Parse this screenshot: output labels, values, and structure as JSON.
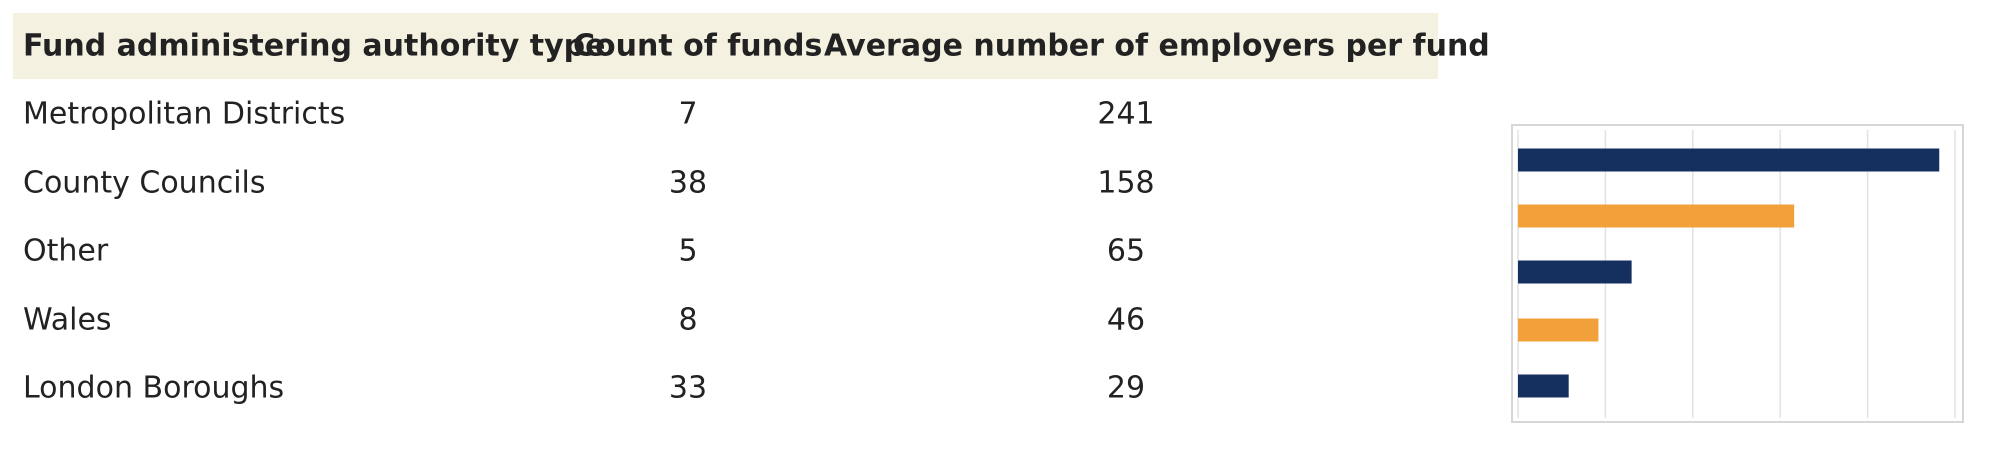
{
  "table": {
    "header": [
      "Fund administering authority type",
      "Count of funds",
      "Average number of employers per fund"
    ],
    "rows": [
      [
        "Metropolitan Districts",
        7,
        241
      ],
      [
        "County Councils",
        38,
        158
      ],
      [
        "Other",
        5,
        65
      ],
      [
        "Wales",
        8,
        46
      ],
      [
        "London Boroughs",
        33,
        29
      ]
    ]
  },
  "chart_data": {
    "type": "bar",
    "orientation": "horizontal",
    "values": [
      241,
      158,
      65,
      46,
      29
    ],
    "colors": [
      "#15305f",
      "#f2a03a",
      "#15305f",
      "#f2a03a",
      "#15305f"
    ],
    "xlim": [
      0,
      250
    ],
    "xticks": [
      0,
      50,
      100,
      150,
      200,
      250
    ],
    "grid": true
  }
}
